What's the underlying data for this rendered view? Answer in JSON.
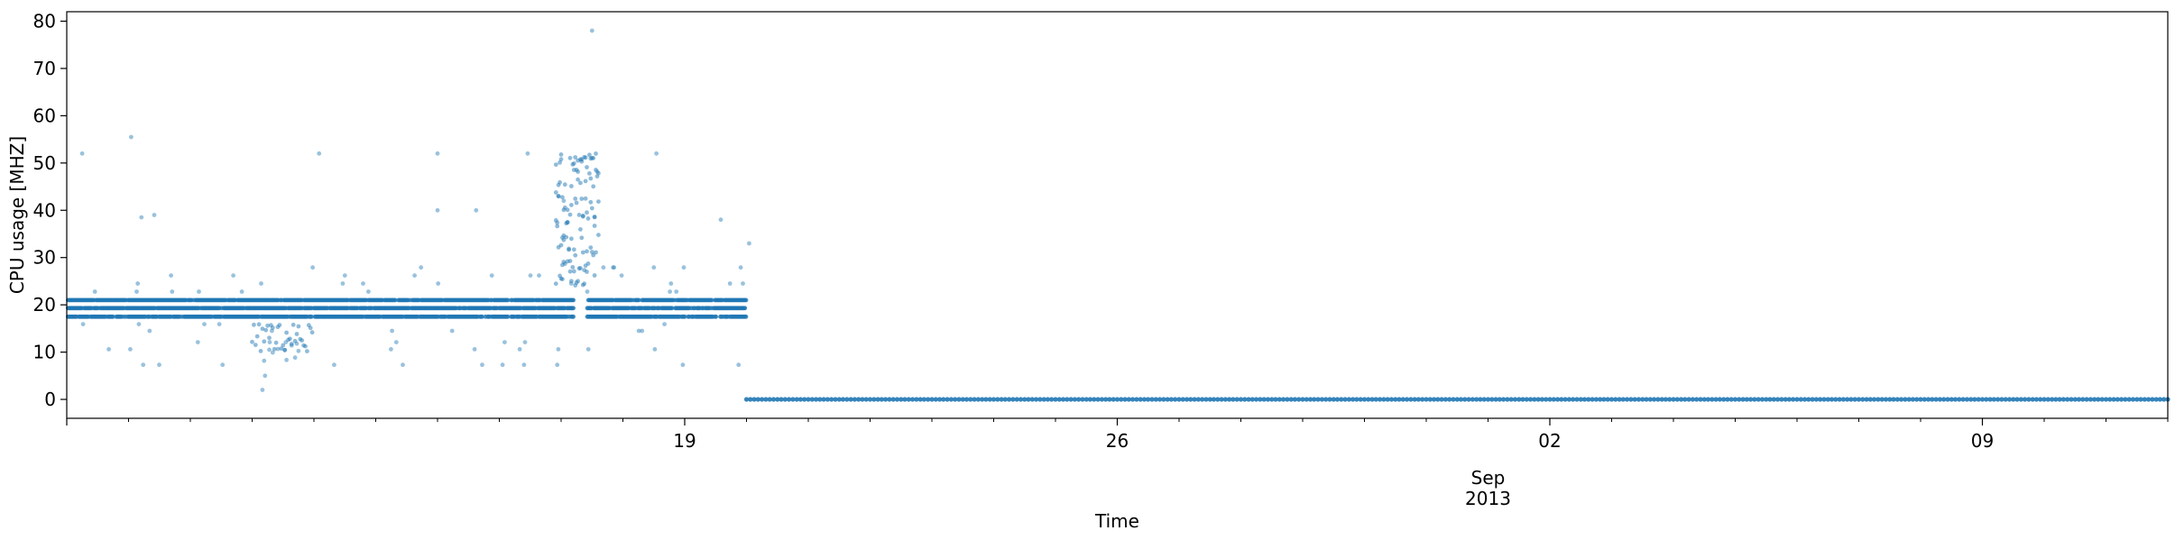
{
  "chart_data": {
    "type": "scatter",
    "title": "",
    "xlabel": "Time",
    "ylabel": "CPU usage [MHZ]",
    "color": "#1f77b4",
    "ylim": [
      -4,
      82
    ],
    "xlim": [
      "2013-08-09",
      "2013-09-12"
    ],
    "y_ticks": [
      0,
      10,
      20,
      30,
      40,
      50,
      60,
      70,
      80
    ],
    "x_major_ticks": [
      {
        "date": "2013-08-19",
        "label": "19"
      },
      {
        "date": "2013-08-26",
        "label": "26"
      },
      {
        "date": "2013-09-02",
        "label": "02"
      },
      {
        "date": "2013-09-09",
        "label": "09"
      }
    ],
    "x_month_label": "Sep",
    "x_year_label": "2013",
    "active_period": {
      "start": "2013-08-09",
      "end": "2013-08-20"
    },
    "active_bands": [
      17.5,
      19.3,
      21.0
    ],
    "idle_period": {
      "start": "2013-08-20",
      "end": "2013-09-12",
      "value": 0
    },
    "notable_points": [
      {
        "x": "2013-08-09 06:00",
        "y": 52
      },
      {
        "x": "2013-08-10 01:00",
        "y": 55.5
      },
      {
        "x": "2013-08-10 05:00",
        "y": 38.5
      },
      {
        "x": "2013-08-10 10:00",
        "y": 39
      },
      {
        "x": "2013-08-12 04:00",
        "y": 2
      },
      {
        "x": "2013-08-12 05:00",
        "y": 5
      },
      {
        "x": "2013-08-13 02:00",
        "y": 52
      },
      {
        "x": "2013-08-15 00:00",
        "y": 52
      },
      {
        "x": "2013-08-15 00:00",
        "y": 40
      },
      {
        "x": "2013-08-15 15:00",
        "y": 40
      },
      {
        "x": "2013-08-16 11:00",
        "y": 52
      },
      {
        "x": "2013-08-17 01:00",
        "y": 42
      },
      {
        "x": "2013-08-17 12:00",
        "y": 78
      },
      {
        "x": "2013-08-18 13:00",
        "y": 52
      },
      {
        "x": "2013-08-19 14:00",
        "y": 38
      },
      {
        "x": "2013-08-20 01:00",
        "y": 33
      }
    ]
  }
}
